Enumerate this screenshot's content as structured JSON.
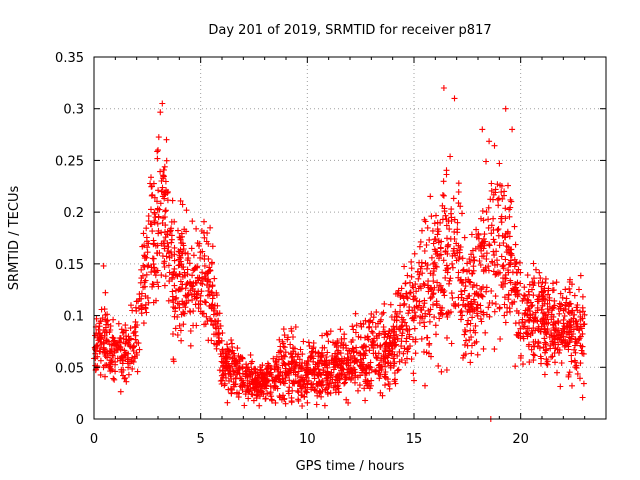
{
  "chart_data": {
    "type": "scatter",
    "title": "Day 201 of 2019, SRMTID for receiver p817",
    "xlabel": "GPS time / hours",
    "ylabel": "SRMTID / TECUs",
    "xlim": [
      0,
      24
    ],
    "ylim": [
      0,
      0.35
    ],
    "xticks": [
      0,
      5,
      10,
      15,
      20
    ],
    "xtick_labels": [
      "0",
      "5",
      "10",
      "15",
      "20"
    ],
    "yticks": [
      0,
      0.05,
      0.1,
      0.15,
      0.2,
      0.25,
      0.3,
      0.35
    ],
    "ytick_labels": [
      "0",
      "0.05",
      "0.1",
      "0.15",
      "0.2",
      "0.25",
      "0.3",
      "0.35"
    ],
    "grid": true,
    "marker": "plus",
    "color": "#ff0000",
    "series": [
      {
        "name": "SRMTID",
        "profile_x": [
          0,
          0.5,
          1,
          1.5,
          2,
          2.5,
          3,
          3.3,
          3.7,
          4,
          4.5,
          5,
          5.5,
          6,
          6.5,
          7,
          7.5,
          8,
          8.5,
          9,
          10,
          11,
          12,
          13,
          14,
          14.5,
          15,
          15.5,
          16,
          16.5,
          17,
          17.5,
          18,
          18.5,
          19,
          19.5,
          20,
          20.5,
          21,
          21.5,
          22,
          22.5,
          23
        ],
        "profile_center": [
          0.07,
          0.075,
          0.065,
          0.06,
          0.09,
          0.15,
          0.2,
          0.21,
          0.13,
          0.15,
          0.13,
          0.14,
          0.13,
          0.06,
          0.045,
          0.04,
          0.035,
          0.035,
          0.04,
          0.05,
          0.045,
          0.045,
          0.055,
          0.06,
          0.07,
          0.09,
          0.11,
          0.12,
          0.14,
          0.15,
          0.15,
          0.1,
          0.13,
          0.16,
          0.16,
          0.15,
          0.1,
          0.1,
          0.1,
          0.08,
          0.09,
          0.08,
          0.08
        ],
        "profile_spread": [
          0.03,
          0.035,
          0.025,
          0.025,
          0.04,
          0.05,
          0.07,
          0.06,
          0.05,
          0.06,
          0.05,
          0.05,
          0.04,
          0.025,
          0.025,
          0.02,
          0.015,
          0.015,
          0.025,
          0.03,
          0.025,
          0.025,
          0.03,
          0.035,
          0.035,
          0.045,
          0.05,
          0.06,
          0.07,
          0.08,
          0.07,
          0.05,
          0.06,
          0.07,
          0.08,
          0.06,
          0.04,
          0.04,
          0.045,
          0.04,
          0.045,
          0.04,
          0.04
        ],
        "approx_points": 2600
      }
    ],
    "highlight_points": [
      {
        "x": 3.2,
        "y": 0.305
      },
      {
        "x": 16.4,
        "y": 0.32
      },
      {
        "x": 16.9,
        "y": 0.31
      },
      {
        "x": 19.3,
        "y": 0.3
      },
      {
        "x": 19.6,
        "y": 0.28
      },
      {
        "x": 18.2,
        "y": 0.28
      },
      {
        "x": 3.0,
        "y": 0.26
      },
      {
        "x": 3.4,
        "y": 0.27
      },
      {
        "x": 0.45,
        "y": 0.148
      },
      {
        "x": 18.6,
        "y": 0.0
      }
    ]
  }
}
